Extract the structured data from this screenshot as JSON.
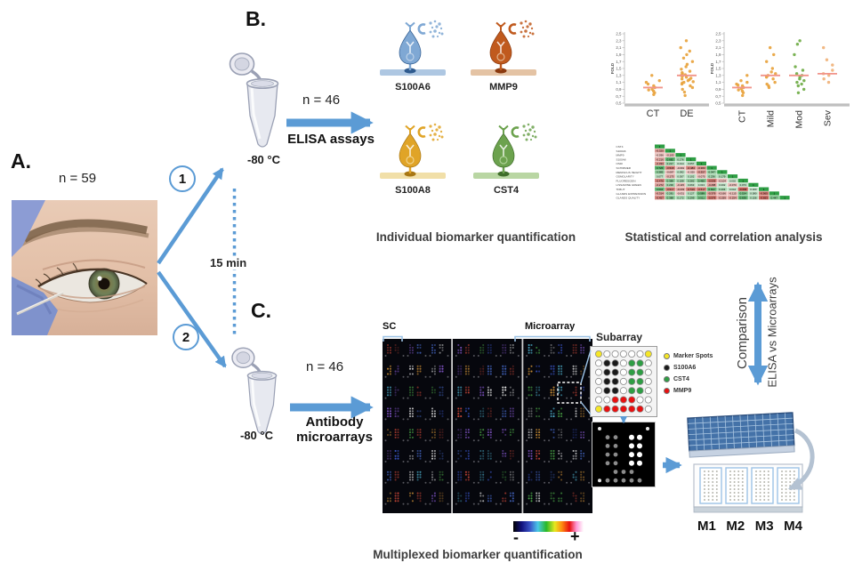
{
  "panel_a": {
    "label": "A.",
    "n_label": "n = 59"
  },
  "branch": {
    "step_1": "1",
    "step_2": "2",
    "time_label": "15 min"
  },
  "panel_b": {
    "label": "B.",
    "storage_temp": "-80 °C",
    "n_label": "n = 46",
    "method_label": "ELISA assays",
    "caption": "Individual biomarker quantification",
    "assays": [
      {
        "name": "S100A6",
        "color": "#7fa8d4",
        "light": "#c3d5ea",
        "dark": "#2f5b8f",
        "bar": "#aec7e2"
      },
      {
        "name": "MMP9",
        "color": "#c05a1e",
        "light": "#e6bd99",
        "dark": "#8b3a0f",
        "bar": "#e4c3a4"
      },
      {
        "name": "S100A8",
        "color": "#e0a427",
        "light": "#f2d globally",
        "dark": "#a87613",
        "bar": "#f1dfa8"
      },
      {
        "name": "CST4",
        "color": "#6ca24e",
        "light": "#b4d49c",
        "dark": "#3f6e2a",
        "bar": "#b9d6a3"
      }
    ],
    "assay_light_fix": [
      "#c3d5ea",
      "#e6bd99",
      "#f2d796",
      "#b4d49c"
    ]
  },
  "stats": {
    "caption": "Statistical and correlation analysis"
  },
  "comparison": {
    "label_1": "Comparison",
    "label_2": "ELISA vs Microarrays"
  },
  "panel_c": {
    "label": "C.",
    "storage_temp": "-80 °C",
    "n_label": "n = 46",
    "method_line1": "Antibody",
    "method_line2": "microarrays",
    "caption": "Multiplexed biomarker quantification",
    "array_image": {
      "sc_label": "SC",
      "microarray_label": "Microarray",
      "scale_minus": "-",
      "scale_plus": "+",
      "palette": [
        "#4a6fd4",
        "#58c8e8",
        "#4fb04a",
        "#e8a23b",
        "#d44a3a",
        "#e8e8e8",
        "#8a5ad4",
        "#3a55c8"
      ]
    },
    "subarray": {
      "title": "Subarray",
      "pattern": [
        "YWWWWWY",
        "WBBWGGW",
        "WBBWGGW",
        "WBBWGGW",
        "WBBWGGW",
        "WWRRRWW",
        "YRRRRRW"
      ],
      "legend": [
        {
          "label": "Marker Spots",
          "color": "#f5e626"
        },
        {
          "label": "S100A6",
          "color": "#1a1a1a"
        },
        {
          "label": "CST4",
          "color": "#2e9e44"
        },
        {
          "label": "MMP9",
          "color": "#e81010"
        }
      ],
      "scan_pattern": [
        "w.....w",
        ".gg.WW.",
        ".gg.WW.",
        ".gg.WW.",
        ".gg.WW.",
        "..ggg..",
        "wggggg."
      ]
    },
    "slides": {
      "labels": [
        "M1",
        "M2",
        "M3",
        "M4"
      ]
    }
  },
  "chart_data": [
    {
      "id": "fold_ct_de",
      "type": "scatter",
      "subtype": "dot-strip",
      "title": "",
      "ylabel": "FOLD",
      "ylim": [
        0.5,
        2.5
      ],
      "ytick_step": 0.2,
      "ytick_labels": [
        "2,5",
        "2,3",
        "2,1",
        "1,9",
        "1,7",
        "1,5",
        "1,3",
        "1,1",
        "0,9",
        "0,7",
        "0,5"
      ],
      "categories": [
        "CT",
        "DE"
      ],
      "mean_color": "#f1948a",
      "series": [
        {
          "category": "CT",
          "color": "#e8a33d",
          "mean": 0.95,
          "values": [
            0.75,
            0.8,
            0.85,
            0.88,
            0.9,
            0.95,
            1.0,
            1.05,
            1.1,
            1.15,
            1.3
          ]
        },
        {
          "category": "DE",
          "color": "#e8a33d",
          "mean": 1.3,
          "values": [
            0.72,
            0.82,
            0.9,
            0.95,
            1.0,
            1.05,
            1.08,
            1.1,
            1.12,
            1.15,
            1.18,
            1.2,
            1.22,
            1.25,
            1.28,
            1.3,
            1.32,
            1.35,
            1.38,
            1.42,
            1.48,
            1.55,
            1.62,
            1.7,
            1.8,
            1.9,
            2.0,
            2.1,
            2.3
          ]
        }
      ]
    },
    {
      "id": "fold_severity",
      "type": "scatter",
      "subtype": "dot-strip",
      "title": "",
      "ylabel": "FOLD",
      "ylim": [
        0.5,
        2.5
      ],
      "ytick_step": 0.2,
      "ytick_labels": [
        "2,5",
        "2,3",
        "2,1",
        "1,9",
        "1,7",
        "1,5",
        "1,3",
        "1,1",
        "0,9",
        "0,7",
        "0,5"
      ],
      "categories": [
        "CT",
        "Mild",
        "Mod",
        "Sev"
      ],
      "mean_color": "#f1948a",
      "series": [
        {
          "category": "CT",
          "color": "#e8a33d",
          "mean": 0.95,
          "values": [
            0.72,
            0.8,
            0.85,
            0.88,
            0.92,
            0.95,
            1.0,
            1.02,
            1.05,
            1.1,
            1.15,
            1.3
          ]
        },
        {
          "category": "Mild",
          "color": "#e8a33d",
          "mean": 1.3,
          "values": [
            0.95,
            1.0,
            1.05,
            1.1,
            1.2,
            1.25,
            1.28,
            1.3,
            1.35,
            1.4,
            1.5,
            1.7,
            1.9,
            2.1
          ]
        },
        {
          "category": "Mod",
          "color": "#70ad47",
          "mean": 1.3,
          "values": [
            0.8,
            0.9,
            1.0,
            1.05,
            1.1,
            1.15,
            1.2,
            1.25,
            1.3,
            1.35,
            1.45,
            1.55,
            1.9,
            2.2,
            2.3
          ]
        },
        {
          "category": "Sev",
          "color": "#f0b27a",
          "mean": 1.35,
          "values": [
            1.1,
            1.2,
            1.3,
            1.35,
            1.45,
            1.6,
            1.75,
            2.1
          ]
        }
      ]
    },
    {
      "id": "correlation_matrix",
      "type": "heatmap",
      "shape": "lower-triangular",
      "positive_color": "#2e9e44",
      "negative_color": "#bb3a2e",
      "labels": [
        "CST4",
        "S100A6",
        "MMP9",
        "S100A8",
        "OSDI",
        "SCHIRMER",
        "MENISCUS HEIGHT",
        "OSMOLARITY",
        "FLUORESCEIN",
        "LISSAMINE GREEN",
        "TFBUT",
        "GLANDS EXPRESSION",
        "GLANDS QUALITY"
      ],
      "values": [
        [
          1
        ],
        [
          -0.32,
          1
        ],
        [
          -0.036,
          -0.103,
          1
        ],
        [
          -0.216,
          0.682,
          0.176,
          1
        ],
        [
          -0.333,
          0.217,
          0.014,
          0.057,
          1
        ],
        [
          0.726,
          -0.518,
          -0.091,
          -0.484,
          -0.383,
          1
        ],
        [
          0.385,
          -0.087,
          0.092,
          -0.02,
          -0.357,
          0.347,
          1
        ],
        [
          0.077,
          -0.175,
          0.057,
          0.102,
          -0.075,
          0.236,
          0.179,
          1
        ],
        [
          -0.476,
          0.389,
          0.188,
          0.282,
          0.465,
          -0.539,
          -0.104,
          0.002,
          1
        ],
        [
          -0.272,
          0.23,
          -0.115,
          0.063,
          0.013,
          -0.288,
          0.002,
          -0.07,
          0.073,
          1
        ],
        [
          0.604,
          -0.517,
          -0.233,
          -0.519,
          -0.517,
          0.602,
          0.204,
          0.044,
          -0.696,
          0.0,
          1
        ],
        [
          -0.314,
          0.281,
          -0.031,
          0.127,
          0.589,
          -0.379,
          -0.166,
          -0.115,
          0.524,
          0.08,
          -0.565,
          1
        ],
        [
          -0.457,
          0.388,
          0.172,
          0.299,
          0.511,
          -0.579,
          -0.259,
          -0.254,
          0.639,
          0.156,
          -0.653,
          0.447,
          1
        ]
      ]
    }
  ],
  "colors": {
    "accent_blue": "#5b9bd5",
    "connector_blue": "#9dc3e6",
    "curve_gray": "#b4c2d2"
  }
}
